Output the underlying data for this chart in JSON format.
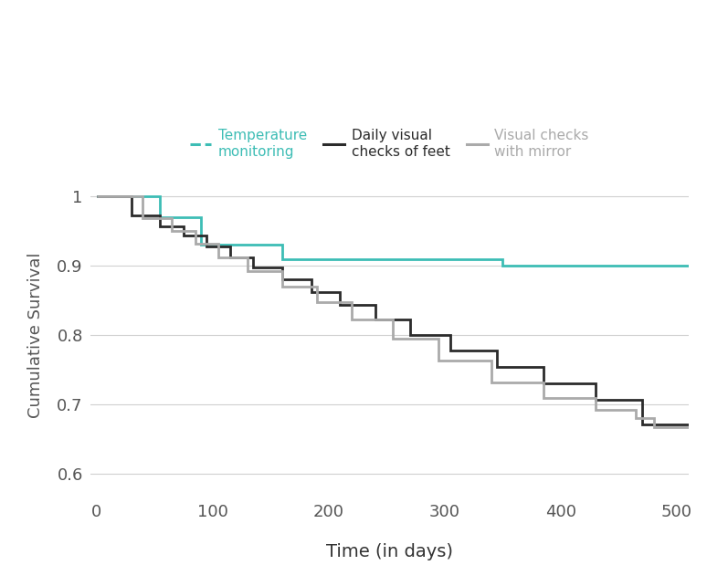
{
  "title": "",
  "xlabel": "Time (in days)",
  "ylabel": "Cumulative Survival",
  "xlim": [
    -5,
    510
  ],
  "ylim": [
    0.575,
    1.025
  ],
  "yticks": [
    0.6,
    0.7,
    0.8,
    0.9,
    1.0
  ],
  "ytick_labels": [
    "0.6",
    "0.7",
    "0.8",
    "0.9",
    "1"
  ],
  "xticks": [
    0,
    100,
    200,
    300,
    400,
    500
  ],
  "background_color": "#ffffff",
  "grid_color": "#d0d0d0",
  "temp_monitoring": {
    "label": "Temperature\nmonitoring",
    "color": "#3dbdb5",
    "linewidth": 2.0,
    "x": [
      0,
      55,
      55,
      90,
      90,
      160,
      160,
      350,
      350,
      510
    ],
    "y": [
      1.0,
      1.0,
      0.97,
      0.97,
      0.93,
      0.93,
      0.91,
      0.91,
      0.9,
      0.9
    ]
  },
  "daily_visual": {
    "label": "Daily visual\nchecks of feet",
    "color": "#2b2b2b",
    "linewidth": 2.0,
    "x": [
      0,
      30,
      30,
      55,
      55,
      75,
      75,
      95,
      95,
      115,
      115,
      135,
      135,
      160,
      160,
      185,
      185,
      210,
      210,
      240,
      240,
      270,
      270,
      305,
      305,
      345,
      345,
      385,
      385,
      430,
      430,
      470,
      470,
      510
    ],
    "y": [
      1.0,
      1.0,
      0.972,
      0.972,
      0.957,
      0.957,
      0.943,
      0.943,
      0.928,
      0.928,
      0.912,
      0.912,
      0.897,
      0.897,
      0.88,
      0.88,
      0.862,
      0.862,
      0.843,
      0.843,
      0.823,
      0.823,
      0.8,
      0.8,
      0.778,
      0.778,
      0.754,
      0.754,
      0.73,
      0.73,
      0.707,
      0.707,
      0.672,
      0.672
    ]
  },
  "mirror_visual": {
    "label": "Visual checks\nwith mirror",
    "color": "#aaaaaa",
    "linewidth": 2.0,
    "x": [
      0,
      40,
      40,
      65,
      65,
      85,
      85,
      105,
      105,
      130,
      130,
      160,
      160,
      190,
      190,
      220,
      220,
      255,
      255,
      295,
      295,
      340,
      340,
      385,
      385,
      430,
      430,
      465,
      465,
      480,
      480,
      510
    ],
    "y": [
      1.0,
      1.0,
      0.968,
      0.968,
      0.95,
      0.95,
      0.932,
      0.932,
      0.912,
      0.912,
      0.892,
      0.892,
      0.87,
      0.87,
      0.847,
      0.847,
      0.822,
      0.822,
      0.795,
      0.795,
      0.763,
      0.763,
      0.732,
      0.732,
      0.71,
      0.71,
      0.693,
      0.693,
      0.68,
      0.68,
      0.668,
      0.668
    ]
  },
  "legend_items": [
    {
      "label": "Temperature\nmonitoring",
      "color": "#3dbdb5"
    },
    {
      "label": "Daily visual\nchecks of feet",
      "color": "#2b2b2b"
    },
    {
      "label": "Visual checks\nwith mirror",
      "color": "#aaaaaa"
    }
  ]
}
